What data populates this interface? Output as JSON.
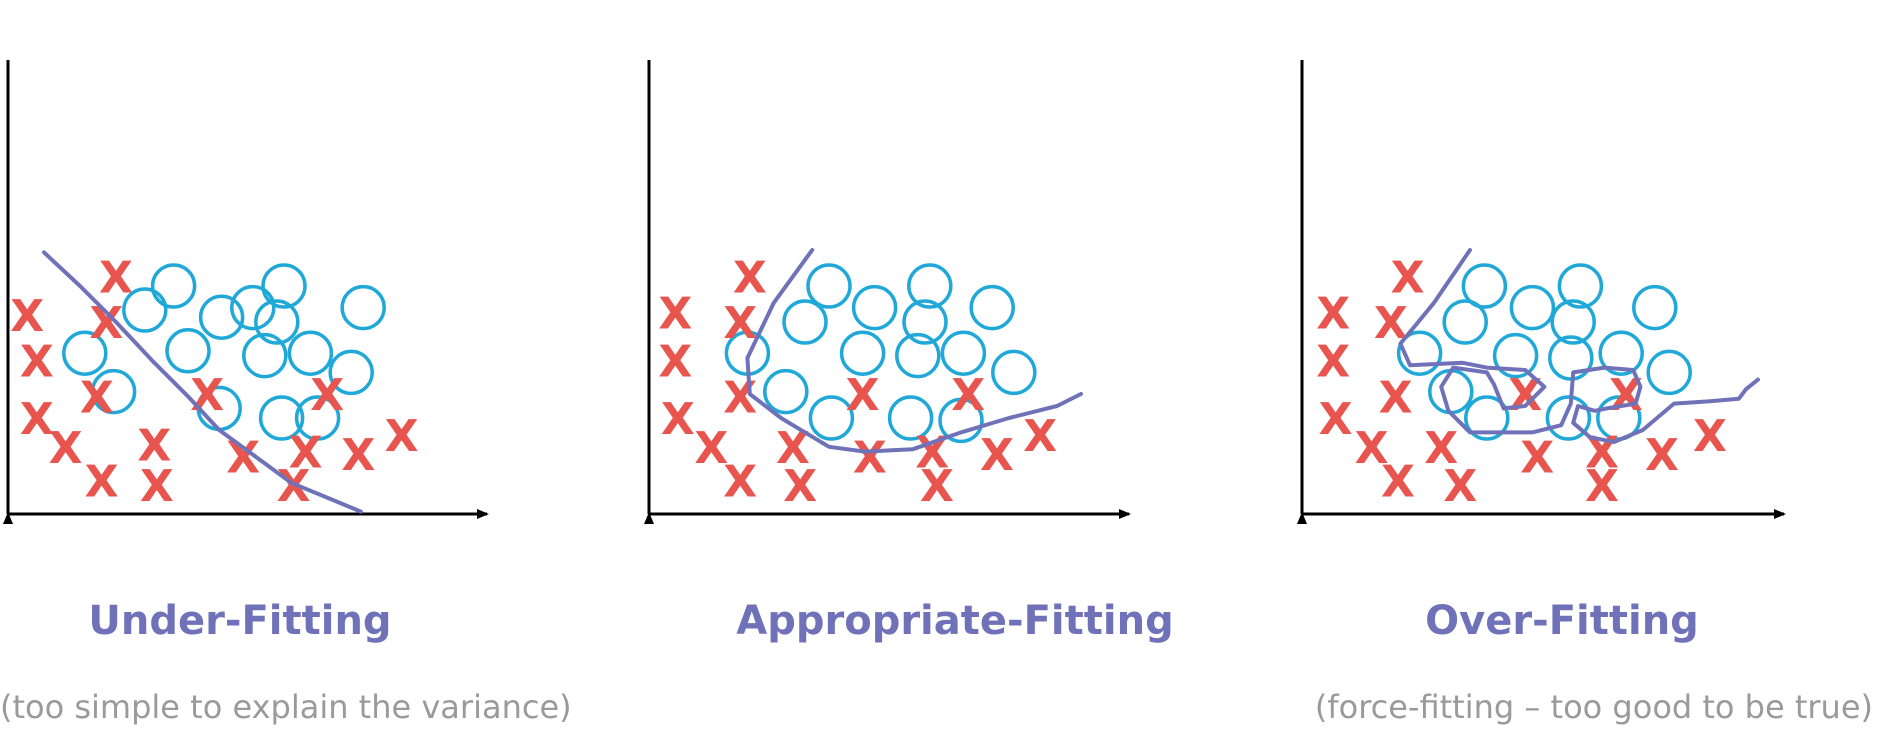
{
  "colors": {
    "cross": "#e8554e",
    "circle": "#1fa8d8",
    "boundary": "#6f72b8",
    "title": "#6f72b8",
    "caption": "#9a9a9a",
    "axis": "#000000"
  },
  "cross_glyph": "X",
  "panels": [
    {
      "id": "under",
      "title": "Under-Fitting",
      "caption": "(too simple to explain the variance)",
      "circles": [
        [
          6.9,
          9.5
        ],
        [
          11.5,
          9.5
        ],
        [
          5.7,
          8.5
        ],
        [
          10.2,
          8.6
        ],
        [
          11.2,
          8.0
        ],
        [
          14.8,
          8.6
        ],
        [
          8.9,
          8.2
        ],
        [
          3.2,
          6.7
        ],
        [
          7.5,
          6.8
        ],
        [
          10.7,
          6.6
        ],
        [
          12.6,
          6.7
        ],
        [
          14.3,
          5.9
        ],
        [
          4.4,
          5.1
        ],
        [
          8.8,
          4.4
        ],
        [
          11.4,
          4.0
        ],
        [
          12.9,
          4.0
        ]
      ],
      "crosses": [
        [
          0.8,
          8.3
        ],
        [
          4.5,
          9.9
        ],
        [
          4.1,
          8.0
        ],
        [
          1.2,
          6.4
        ],
        [
          1.2,
          4.0
        ],
        [
          3.7,
          4.9
        ],
        [
          8.3,
          5.0
        ],
        [
          13.3,
          5.0
        ],
        [
          2.4,
          2.8
        ],
        [
          6.1,
          2.9
        ],
        [
          16.4,
          3.3
        ],
        [
          12.4,
          2.6
        ],
        [
          14.6,
          2.5
        ],
        [
          9.8,
          2.4
        ],
        [
          3.9,
          1.4
        ],
        [
          6.2,
          1.2
        ],
        [
          11.9,
          1.2
        ]
      ],
      "boundary": [
        [
          1.5,
          10.9
        ],
        [
          3.0,
          9.5
        ],
        [
          4.5,
          8.0
        ],
        [
          6.0,
          6.4
        ],
        [
          7.5,
          4.9
        ],
        [
          8.8,
          3.5
        ],
        [
          10.3,
          2.4
        ],
        [
          11.8,
          1.3
        ],
        [
          13.5,
          0.6
        ],
        [
          14.7,
          0.1
        ]
      ]
    },
    {
      "id": "appropriate",
      "title": "Appropriate-Fitting",
      "caption": "",
      "circles": [
        [
          7.5,
          9.5
        ],
        [
          11.7,
          9.5
        ],
        [
          9.4,
          8.6
        ],
        [
          14.3,
          8.6
        ],
        [
          6.5,
          8.0
        ],
        [
          11.5,
          8.0
        ],
        [
          4.1,
          6.7
        ],
        [
          8.9,
          6.7
        ],
        [
          11.2,
          6.6
        ],
        [
          13.1,
          6.7
        ],
        [
          15.2,
          5.9
        ],
        [
          5.7,
          5.1
        ],
        [
          7.6,
          4.0
        ],
        [
          10.9,
          4.0
        ],
        [
          13.0,
          3.9
        ]
      ],
      "crosses": [
        [
          1.1,
          8.4
        ],
        [
          4.2,
          9.9
        ],
        [
          3.8,
          8.0
        ],
        [
          1.1,
          6.4
        ],
        [
          1.2,
          4.0
        ],
        [
          3.8,
          4.9
        ],
        [
          8.9,
          5.0
        ],
        [
          13.3,
          5.0
        ],
        [
          2.6,
          2.8
        ],
        [
          6.0,
          2.8
        ],
        [
          16.3,
          3.3
        ],
        [
          11.8,
          2.6
        ],
        [
          14.5,
          2.5
        ],
        [
          9.2,
          2.4
        ],
        [
          3.8,
          1.4
        ],
        [
          6.3,
          1.2
        ],
        [
          12.0,
          1.2
        ]
      ],
      "boundary": [
        [
          6.8,
          11.0
        ],
        [
          5.2,
          8.8
        ],
        [
          4.1,
          6.5
        ],
        [
          4.2,
          5.0
        ],
        [
          5.5,
          4.0
        ],
        [
          7.5,
          2.8
        ],
        [
          9.0,
          2.6
        ],
        [
          11.0,
          2.7
        ],
        [
          13.0,
          3.4
        ],
        [
          15.0,
          4.0
        ],
        [
          17.0,
          4.5
        ],
        [
          18.0,
          5.0
        ]
      ]
    },
    {
      "id": "over",
      "title": "Over-Fitting",
      "caption": "(force-fitting – too good to be true)",
      "circles": [
        [
          7.6,
          9.5
        ],
        [
          11.6,
          9.5
        ],
        [
          9.6,
          8.6
        ],
        [
          14.7,
          8.6
        ],
        [
          6.8,
          8.0
        ],
        [
          11.3,
          8.0
        ],
        [
          4.9,
          6.7
        ],
        [
          8.9,
          6.6
        ],
        [
          11.2,
          6.5
        ],
        [
          13.3,
          6.7
        ],
        [
          15.3,
          5.9
        ],
        [
          6.2,
          5.1
        ],
        [
          7.7,
          4.0
        ],
        [
          11.1,
          4.0
        ],
        [
          13.2,
          4.0
        ]
      ],
      "crosses": [
        [
          1.3,
          8.4
        ],
        [
          4.4,
          9.9
        ],
        [
          3.7,
          8.0
        ],
        [
          1.3,
          6.4
        ],
        [
          1.4,
          4.0
        ],
        [
          3.9,
          4.9
        ],
        [
          9.3,
          5.0
        ],
        [
          13.5,
          5.0
        ],
        [
          2.9,
          2.8
        ],
        [
          5.8,
          2.8
        ],
        [
          17.0,
          3.3
        ],
        [
          12.5,
          2.6
        ],
        [
          15.0,
          2.5
        ],
        [
          9.8,
          2.4
        ],
        [
          4.0,
          1.4
        ],
        [
          6.6,
          1.2
        ],
        [
          12.5,
          1.2
        ]
      ],
      "boundary": [
        [
          7.0,
          11.0
        ],
        [
          5.5,
          8.8
        ],
        [
          4.1,
          7.1
        ],
        [
          4.5,
          6.2
        ],
        [
          6.7,
          6.3
        ],
        [
          7.7,
          6.1
        ],
        [
          9.3,
          6.0
        ],
        [
          10.1,
          5.3
        ],
        [
          9.3,
          4.5
        ],
        [
          8.4,
          4.4
        ],
        [
          8.0,
          5.4
        ],
        [
          7.7,
          5.9
        ],
        [
          6.3,
          6.1
        ],
        [
          5.8,
          5.3
        ],
        [
          6.1,
          4.3
        ],
        [
          7.0,
          3.4
        ],
        [
          9.6,
          3.4
        ],
        [
          10.8,
          3.7
        ],
        [
          11.2,
          4.6
        ],
        [
          11.3,
          5.9
        ],
        [
          12.6,
          6.1
        ],
        [
          13.8,
          6.0
        ],
        [
          14.1,
          5.3
        ],
        [
          13.9,
          4.6
        ],
        [
          12.7,
          4.4
        ],
        [
          12.2,
          4.3
        ],
        [
          11.5,
          4.5
        ],
        [
          11.3,
          3.8
        ],
        [
          12.0,
          3.2
        ],
        [
          13.0,
          3.0
        ],
        [
          14.2,
          3.5
        ],
        [
          15.5,
          4.6
        ],
        [
          17.0,
          4.7
        ],
        [
          18.2,
          4.8
        ],
        [
          18.5,
          5.2
        ],
        [
          19.0,
          5.6
        ]
      ]
    }
  ]
}
